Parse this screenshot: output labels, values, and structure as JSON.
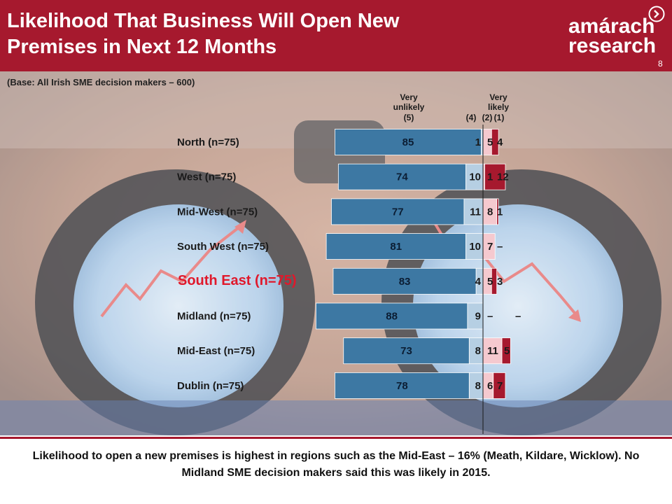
{
  "header": {
    "title_line1": "Likelihood That Business Will Open New",
    "title_line2": "Premises in Next 12 Months",
    "logo_line1": "amárach",
    "logo_line2": "research",
    "logo_icon": "chevron-right-circle-icon",
    "page_number": "8"
  },
  "base_note": "(Base: All Irish SME decision makers – 600)",
  "conclusion": "Likelihood to open a new premises is highest in regions such as the Mid-East – 16% (Meath, Kildare, Wicklow). No Midland SME decision makers said this was likely in 2015.",
  "colors": {
    "header": "#a6192e",
    "very_unlikely": "#3d78a3",
    "unlikely": "#b6cfe3",
    "likely": "#f5c9cf",
    "very_likely": "#a6192e",
    "highlight": "#e0182b"
  },
  "chart_data": {
    "type": "bar",
    "orientation": "horizontal-diverging",
    "column_headers": [
      "Very unlikely (5)",
      "(4)",
      "(2)",
      "Very likely (1)"
    ],
    "header_very_unlikely": [
      "Very",
      "unlikely",
      "(5)"
    ],
    "header_very_likely": [
      "Very",
      "likely"
    ],
    "header_4": "(4)",
    "header_2": "(2)",
    "header_1": "(1)",
    "categories": [
      "North (n=75)",
      "West (n=75)",
      "Mid-West (n=75)",
      "South West (n=75)",
      "South East (n=75)",
      "Midland (n=75)",
      "Mid-East (n=75)",
      "Dublin (n=75)"
    ],
    "highlighted_category": "South East (n=75)",
    "series": [
      {
        "name": "Very unlikely (5)",
        "values": [
          85,
          74,
          77,
          81,
          83,
          88,
          73,
          78
        ]
      },
      {
        "name": "(4)",
        "values": [
          1,
          10,
          11,
          10,
          4,
          9,
          8,
          8
        ]
      },
      {
        "name": "(2)",
        "values": [
          5,
          1,
          8,
          7,
          5,
          null,
          11,
          6
        ]
      },
      {
        "name": "Very likely (1)",
        "values": [
          4,
          12,
          1,
          null,
          3,
          null,
          5,
          7
        ]
      }
    ],
    "missing_label": "–"
  }
}
